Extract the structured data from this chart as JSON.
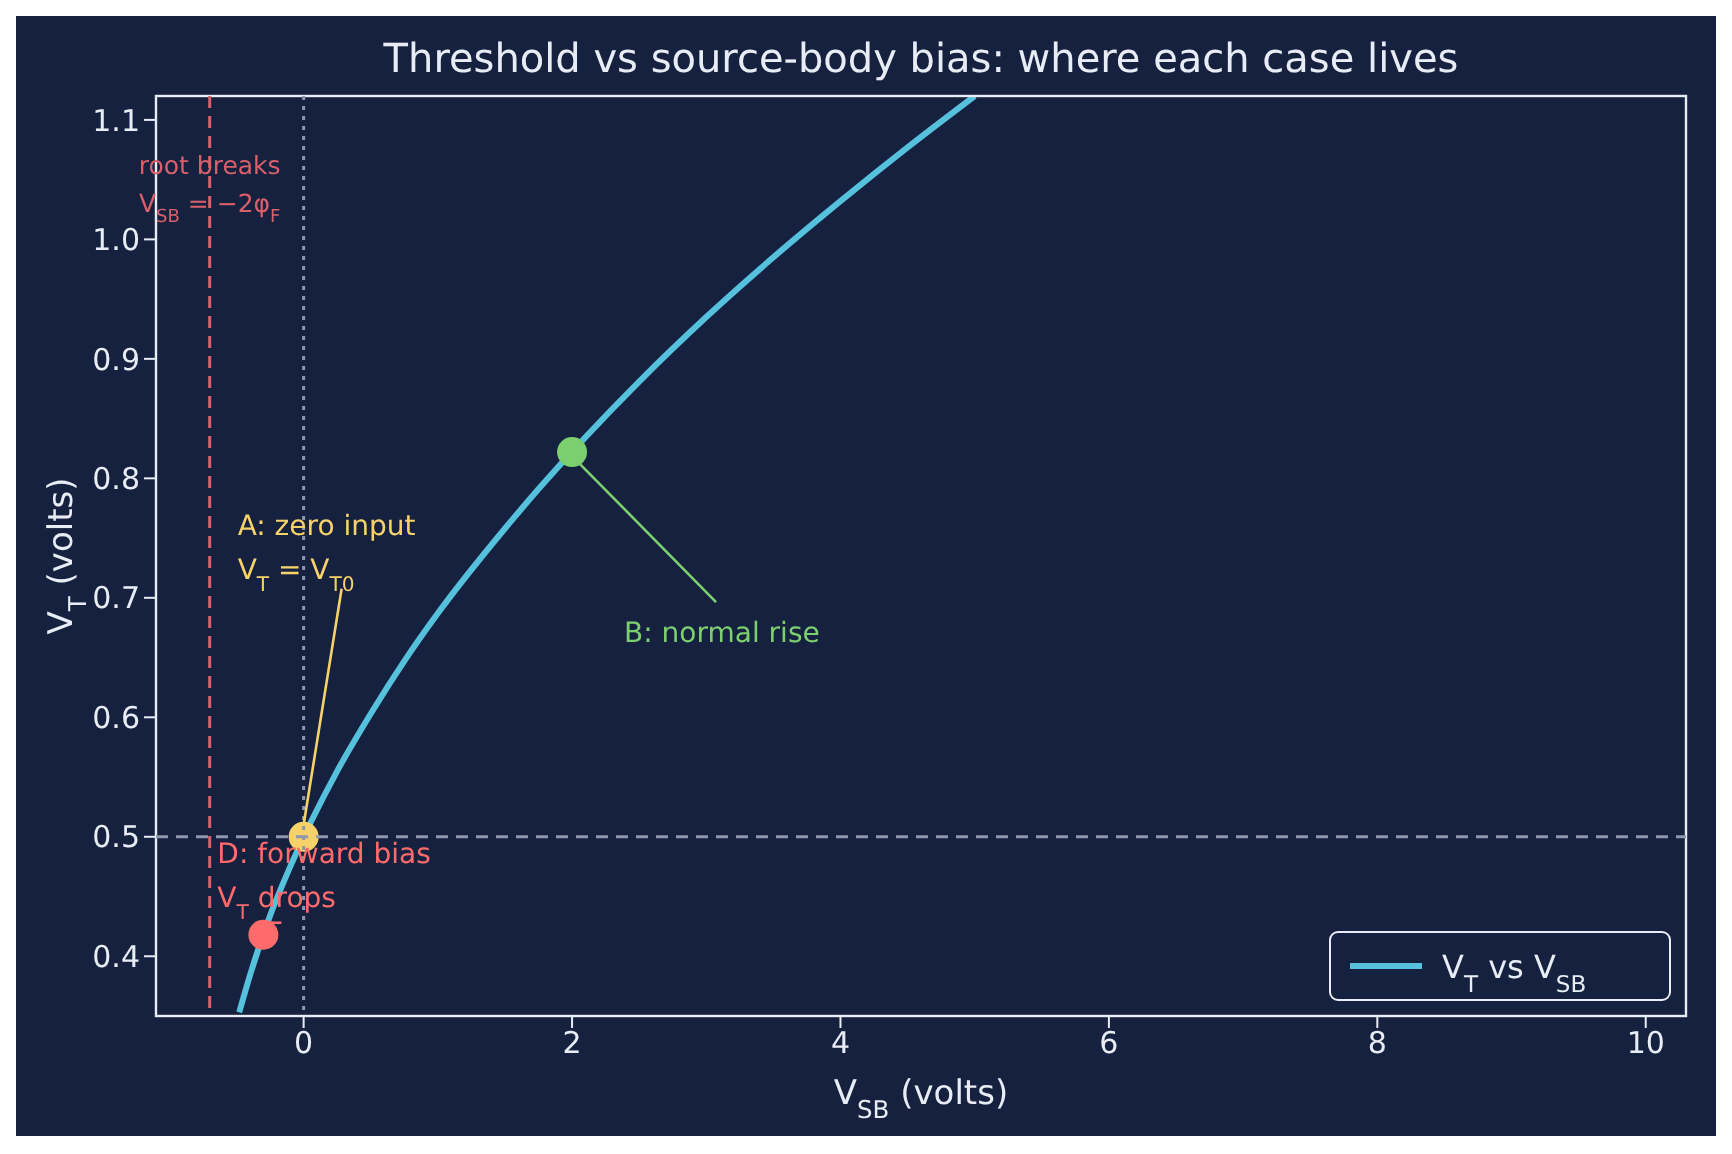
{
  "chart_data": {
    "type": "line",
    "title": "Threshold vs source-body bias: where each case lives",
    "xlabel": "V$_{SB}$  (volts)",
    "ylabel": "V$_{T}$  (volts)",
    "xlim": [
      -1.1,
      10.3
    ],
    "xticks": [
      0,
      2,
      4,
      6,
      8,
      10
    ],
    "ylim": [
      0.35,
      1.12
    ],
    "yticks": [
      0.4,
      0.5,
      0.6,
      0.7,
      0.8,
      0.9,
      {
        "value": 1,
        "label": "1.0"
      },
      1.1
    ],
    "grid": false,
    "legend": "bottom right",
    "series": [
      {
        "name": "V$_{T}$ vs V$_{SB}$",
        "color": "#56c1dc",
        "x": [
          -0.48,
          -0.4,
          -0.25,
          -0.1,
          0.25,
          0.5,
          0.75,
          1,
          1.5,
          1.75,
          2.5,
          3,
          3.5,
          4,
          4.5,
          5
        ],
        "values": [
          0.353,
          0.384,
          0.434,
          0.475,
          0.555,
          0.603,
          0.647,
          0.687,
          0.758,
          0.791,
          0.881,
          0.935,
          0.985,
          1.032,
          1.077,
          1.12
        ]
      },
      {
        "type": "scatter",
        "x": [
          0,
          2,
          -0.3
        ],
        "values": [
          0.5,
          0.822,
          0.418
        ],
        "colors": [
          "#f7d26a",
          "#7ccf6f",
          "#ff6b6b"
        ]
      }
    ],
    "ref_lines": [
      {
        "axis": "x",
        "value": -0.7,
        "color": "#d9606a",
        "line_style": "dashed"
      },
      {
        "axis": "x",
        "value": 0,
        "color": "#8e97ad",
        "line_style": "dotted"
      },
      {
        "axis": "y",
        "value": 0.5,
        "color": "#8e97ad",
        "line_style": "dashed"
      }
    ],
    "annotations": [
      {
        "text": "A: zero input\nV$_{T}$ = V$_{T0}$",
        "x": 0,
        "y": 0.5
      },
      {
        "text": "B: normal rise",
        "x": 2,
        "y": 0.822
      },
      {
        "text": "D: forward bias\nV$_{T}$ drops",
        "x": -0.3,
        "y": 0.418
      },
      "root breaks\nV$_{SB}$ = −2φ$_{F}$"
    ]
  }
}
